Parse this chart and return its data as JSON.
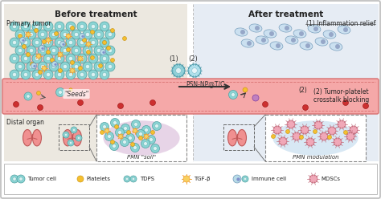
{
  "bg_color": "#f5f5f5",
  "panel_bg": "#ece8e0",
  "right_panel_bg": "#e6ecf4",
  "vessel_color": "#f5a8a8",
  "vessel_edge_color": "#d87070",
  "tumor_cell_color": "#8ad4d4",
  "tumor_cell_edge": "#50a0a0",
  "tumor_cell_inner": "#ffffff",
  "platelet_color": "#f5c030",
  "platelet_edge": "#c89010",
  "tgfb_color": "#f0a030",
  "tgfb_inner": "#f8d060",
  "immune_color": "#b8dce8",
  "immune_edge": "#7098b8",
  "immune_inner": "#8090cc",
  "mdsc_color": "#f0a8b8",
  "mdsc_edge": "#c06878",
  "lung_color": "#f09090",
  "lung_edge": "#c05858",
  "inset_bg": "#e8d0e8",
  "inset2_bg": "#c8dff0",
  "np_color1": "#90d0d8",
  "np_color2": "#b0e0ec",
  "np_edge": "#4898a8",
  "calm_cell_color": "#c8dff0",
  "calm_cell_edge": "#7098b8",
  "title_left": "Before treatment",
  "title_right": "After treatment",
  "label_primary": "Primary tumor",
  "label_distal": "Distal organ",
  "label_seeds": "\"Seeds\"",
  "label_pmn_soil": "PMN \"soil\"",
  "label_pmn_mod": "PMN modulation",
  "label_psn": "PSN-NP@T/C",
  "label_1": "(1)",
  "label_2": "(2)",
  "label_inflam": "(1) Inflammation relief",
  "label_crosstalk": "(2) Tumor-platelet\ncrosstalk blocking",
  "legend_items": [
    "Tumor cell",
    "Platelets",
    "TDPS",
    "TGF-β",
    "Immune cell",
    "MDSCs"
  ]
}
